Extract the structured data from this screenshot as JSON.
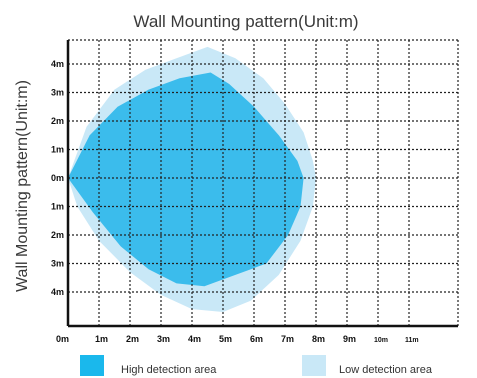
{
  "chart_data": {
    "type": "area",
    "title": "Wall Mounting pattern(Unit:m)",
    "xlabel": "",
    "ylabel": "Wall Mounting pattern(Unit:m)",
    "x_ticks": [
      "0m",
      "1m",
      "2m",
      "3m",
      "4m",
      "5m",
      "6m",
      "7m",
      "8m",
      "9m",
      "10m",
      "11m"
    ],
    "y_ticks": [
      "4m",
      "3m",
      "2m",
      "1m",
      "0m",
      "1m",
      "2m",
      "3m",
      "4m"
    ],
    "xlim": [
      0,
      12.5
    ],
    "ylim": [
      -5.5,
      5.2
    ],
    "grid": true,
    "legend_position": "bottom",
    "series": [
      {
        "name": "Low detection area",
        "color": "#c9e8f7",
        "points": [
          [
            0,
            0
          ],
          [
            0.6,
            1.8
          ],
          [
            1.5,
            3.1
          ],
          [
            2.5,
            3.8
          ],
          [
            3.5,
            4.2
          ],
          [
            4.5,
            4.6
          ],
          [
            5.4,
            4.2
          ],
          [
            6.3,
            3.5
          ],
          [
            7,
            2.6
          ],
          [
            7.6,
            1.6
          ],
          [
            7.9,
            0.6
          ],
          [
            8,
            0
          ],
          [
            7.9,
            -1.0
          ],
          [
            7.5,
            -2.2
          ],
          [
            6.8,
            -3.4
          ],
          [
            5.9,
            -4.3
          ],
          [
            5,
            -4.7
          ],
          [
            4,
            -4.6
          ],
          [
            3,
            -4.1
          ],
          [
            2,
            -3.3
          ],
          [
            1,
            -2.2
          ],
          [
            0.3,
            -1.0
          ]
        ]
      },
      {
        "name": "High detection area",
        "color": "#3bbcec",
        "points": [
          [
            0,
            0
          ],
          [
            0.7,
            1.5
          ],
          [
            1.6,
            2.5
          ],
          [
            2.6,
            3.1
          ],
          [
            3.6,
            3.5
          ],
          [
            4.6,
            3.7
          ],
          [
            5.2,
            3.3
          ],
          [
            6.0,
            2.5
          ],
          [
            6.8,
            1.5
          ],
          [
            7.4,
            0.6
          ],
          [
            7.6,
            0
          ],
          [
            7.5,
            -1.0
          ],
          [
            7.1,
            -2.0
          ],
          [
            6.4,
            -3.0
          ],
          [
            5.4,
            -3.4
          ],
          [
            4.4,
            -3.8
          ],
          [
            3.5,
            -3.7
          ],
          [
            2.6,
            -3.2
          ],
          [
            1.7,
            -2.4
          ],
          [
            0.8,
            -1.2
          ]
        ]
      }
    ],
    "legend": [
      {
        "label": "High detection area",
        "color": "#1ab8ec"
      },
      {
        "label": "Low detection area",
        "color": "#c9e8f7"
      }
    ]
  }
}
